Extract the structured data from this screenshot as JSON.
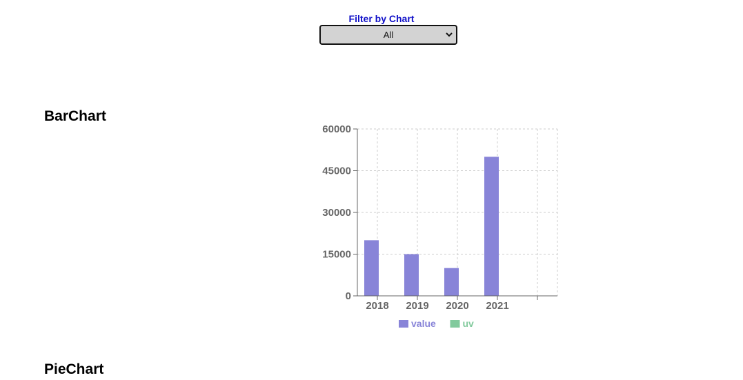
{
  "filter": {
    "label": "Filter by Chart",
    "selected": "All"
  },
  "sections": {
    "bar_title": "BarChart",
    "pie_title": "PieChart"
  },
  "chart_data": {
    "type": "bar",
    "categories": [
      "2018",
      "2019",
      "2020",
      "2021",
      ""
    ],
    "series": [
      {
        "name": "value",
        "values": [
          20000,
          15000,
          10000,
          50000,
          null
        ],
        "color": "#8884d8"
      },
      {
        "name": "uv",
        "values": [
          null,
          null,
          null,
          null,
          null
        ],
        "color": "#82ca9d"
      }
    ],
    "yticks": [
      0,
      15000,
      30000,
      45000,
      60000
    ],
    "ylim": [
      0,
      60000
    ],
    "grid": true,
    "legend": "bottom",
    "axis_color": "#666666",
    "grid_color": "#cccccc"
  }
}
